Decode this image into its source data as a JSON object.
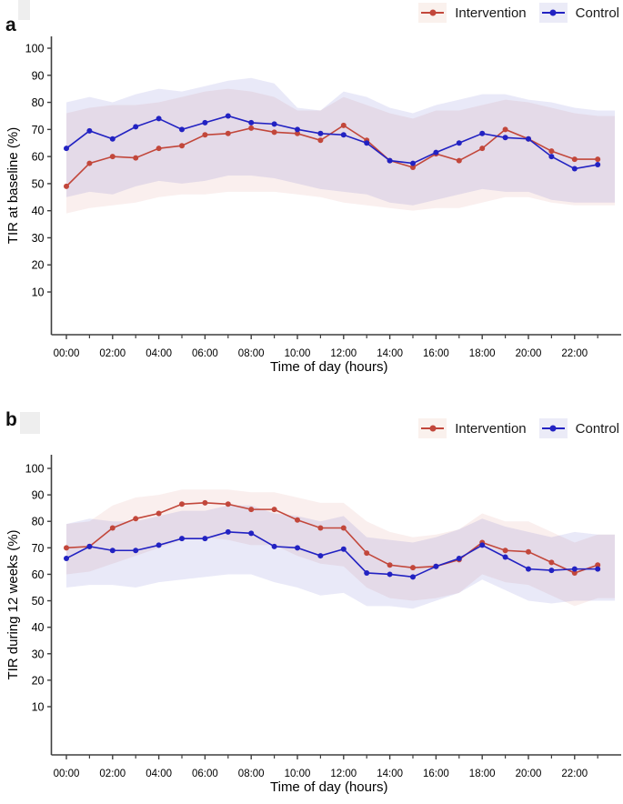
{
  "figure": {
    "x_tick_labels": [
      "00:00",
      "02:00",
      "04:00",
      "06:00",
      "08:00",
      "10:00",
      "12:00",
      "14:00",
      "16:00",
      "18:00",
      "20:00",
      "22:00"
    ],
    "y_tick_labels": [
      "100",
      "90",
      "80",
      "70",
      "60",
      "50",
      "40",
      "30",
      "20",
      "10"
    ],
    "colors": {
      "intervention": "#c2473b",
      "control": "#2222c2",
      "intervention_band": "#c2473b",
      "control_band": "#3b3bc0",
      "intervention_swatch_bg": "#faf1ed",
      "control_swatch_bg": "#ebebf7",
      "axis": "#3f3f3f"
    }
  },
  "chart_data": [
    {
      "type": "line",
      "panel_label": "a",
      "xlabel": "Time of day (hours)",
      "ylabel": "TIR at baseline (%)",
      "x_hours": [
        0,
        1,
        2,
        3,
        4,
        5,
        6,
        7,
        8,
        9,
        10,
        11,
        12,
        13,
        14,
        15,
        16,
        17,
        18,
        19,
        20,
        21,
        22,
        23
      ],
      "x_major_tick_hours": [
        0,
        2,
        4,
        6,
        8,
        10,
        12,
        14,
        16,
        18,
        20,
        22
      ],
      "x_minor_tick_hours": [
        1,
        3,
        5,
        7,
        9,
        11,
        13,
        15,
        17,
        19,
        21,
        23
      ],
      "y_ticks": [
        10,
        20,
        30,
        40,
        50,
        60,
        70,
        80,
        90,
        100
      ],
      "ylim": [
        0,
        105
      ],
      "grid": false,
      "legend_position": "top-right",
      "legend": {
        "items": [
          {
            "label": "Intervention"
          },
          {
            "label": "Control"
          }
        ]
      },
      "series": [
        {
          "name": "Intervention",
          "values": [
            49,
            57.5,
            60,
            59.5,
            63,
            64,
            68,
            68.5,
            70.5,
            69,
            68.5,
            66,
            71.5,
            66,
            58.5,
            56,
            61,
            58.5,
            63,
            70,
            66.5,
            62,
            59,
            59
          ],
          "band_lower": [
            39,
            41,
            42,
            43,
            45,
            46,
            46,
            47,
            47,
            47,
            46,
            45,
            43,
            42,
            41,
            40,
            41,
            41,
            43,
            45,
            45,
            43,
            42,
            42
          ],
          "band_upper": [
            76,
            78,
            79,
            79,
            80,
            82,
            84,
            85,
            84,
            82,
            77,
            77,
            82,
            79,
            76,
            74,
            77,
            77,
            79,
            81,
            80,
            78,
            76,
            75
          ]
        },
        {
          "name": "Control",
          "values": [
            63,
            69.5,
            66.5,
            71,
            74,
            70,
            72.5,
            75,
            72.5,
            72,
            70,
            68.5,
            68,
            65,
            58.5,
            57.5,
            61.5,
            65,
            68.5,
            67,
            66.5,
            60,
            55.5,
            57
          ],
          "band_lower": [
            45,
            47,
            46,
            49,
            51,
            50,
            51,
            53,
            53,
            52,
            50,
            48,
            47,
            46,
            43,
            42,
            44,
            46,
            48,
            47,
            47,
            44,
            43,
            43
          ],
          "band_upper": [
            80,
            82,
            80,
            83,
            85,
            84,
            86,
            88,
            89,
            87,
            78,
            77,
            84,
            82,
            78,
            76,
            79,
            81,
            83,
            83,
            81,
            80,
            78,
            77
          ]
        }
      ]
    },
    {
      "type": "line",
      "panel_label": "b",
      "xlabel": "Time of day (hours)",
      "ylabel": "TIR during 12 weeks (%)",
      "x_hours": [
        0,
        1,
        2,
        3,
        4,
        5,
        6,
        7,
        8,
        9,
        10,
        11,
        12,
        13,
        14,
        15,
        16,
        17,
        18,
        19,
        20,
        21,
        22,
        23
      ],
      "x_major_tick_hours": [
        0,
        2,
        4,
        6,
        8,
        10,
        12,
        14,
        16,
        18,
        20,
        22
      ],
      "x_minor_tick_hours": [
        1,
        3,
        5,
        7,
        9,
        11,
        13,
        15,
        17,
        19,
        21,
        23
      ],
      "y_ticks": [
        10,
        20,
        30,
        40,
        50,
        60,
        70,
        80,
        90,
        100
      ],
      "ylim": [
        0,
        105
      ],
      "grid": false,
      "legend_position": "top-right",
      "legend": {
        "items": [
          {
            "label": "Intervention"
          },
          {
            "label": "Control"
          }
        ]
      },
      "series": [
        {
          "name": "Intervention",
          "values": [
            70,
            70.5,
            77.5,
            81,
            83,
            86.5,
            87,
            86.5,
            84.5,
            84.5,
            80.5,
            77.5,
            77.5,
            68,
            63.5,
            62.5,
            63,
            65.5,
            72,
            69,
            68.5,
            64.5,
            60.5,
            63.5
          ],
          "band_lower": [
            60,
            61,
            64,
            67,
            70,
            73,
            74,
            73,
            71,
            71,
            67,
            64,
            63,
            55,
            51,
            50,
            51,
            53,
            60,
            57,
            56,
            52,
            48,
            51
          ],
          "band_upper": [
            79,
            80,
            86,
            89,
            90,
            92,
            92,
            92,
            91,
            91,
            89,
            87,
            87,
            80,
            76,
            74,
            75,
            77,
            83,
            80,
            80,
            76,
            72,
            75
          ]
        },
        {
          "name": "Control",
          "values": [
            66,
            70.5,
            69,
            69,
            71,
            73.5,
            73.5,
            76,
            75.5,
            70.5,
            70,
            67,
            69.5,
            60.5,
            60,
            59,
            63,
            66,
            71,
            66.5,
            62,
            61.5,
            62,
            62
          ],
          "band_lower": [
            55,
            56,
            56,
            55,
            57,
            58,
            59,
            60,
            60,
            57,
            55,
            52,
            53,
            48,
            48,
            47,
            50,
            53,
            58,
            54,
            50,
            49,
            50,
            50
          ],
          "band_upper": [
            79,
            81,
            80,
            80,
            82,
            84,
            84,
            86,
            86,
            83,
            82,
            80,
            82,
            74,
            73,
            72,
            74,
            77,
            81,
            78,
            76,
            74,
            76,
            75
          ]
        }
      ]
    }
  ]
}
